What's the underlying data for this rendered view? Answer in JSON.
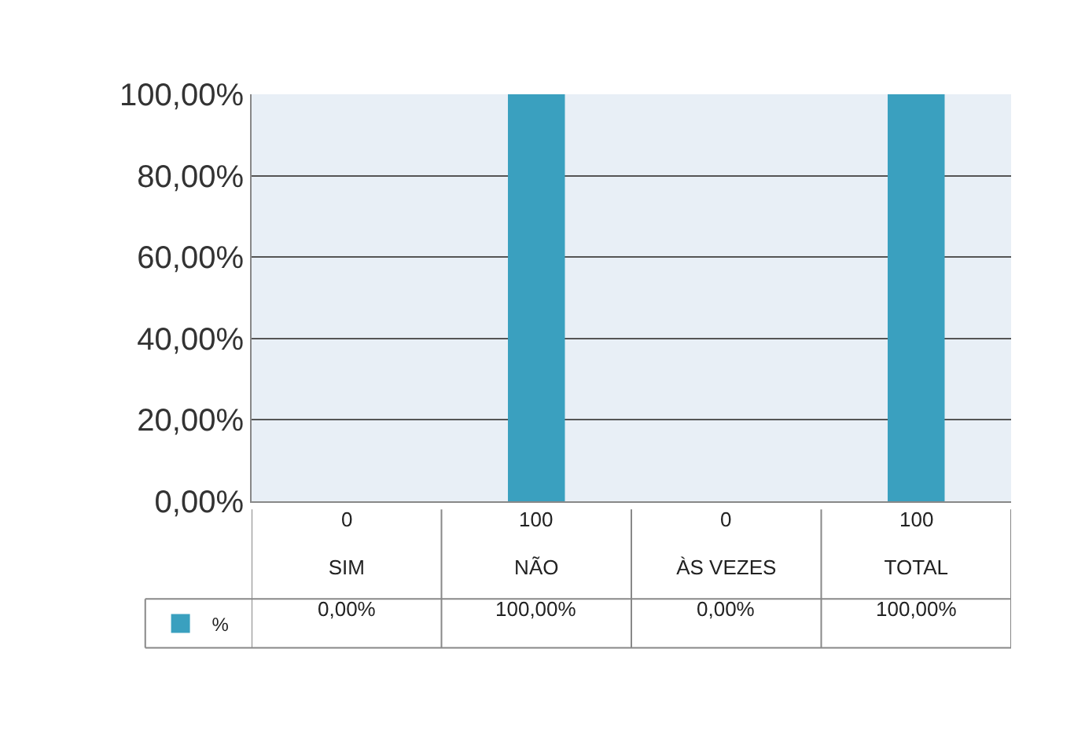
{
  "chart_data": {
    "type": "bar",
    "categories": [
      "SIM",
      "NÃO",
      "ÀS VEZES",
      "TOTAL"
    ],
    "series": [
      {
        "name": "%",
        "color": "#3aa0bf",
        "values": [
          0,
          100,
          0,
          100
        ],
        "value_labels": [
          "0,00%",
          "100,00%",
          "0,00%",
          "100,00%"
        ]
      }
    ],
    "annotations": [
      "0",
      "100",
      "0",
      "100"
    ],
    "ylim": [
      0,
      100
    ],
    "yticks": [
      {
        "value": 0,
        "label": "0,00%"
      },
      {
        "value": 20,
        "label": "20,00%"
      },
      {
        "value": 40,
        "label": "40,00%"
      },
      {
        "value": 60,
        "label": "60,00%"
      },
      {
        "value": 80,
        "label": "80,00%"
      },
      {
        "value": 100,
        "label": "100,00%"
      }
    ],
    "grid": true,
    "legend": "bottom left"
  }
}
